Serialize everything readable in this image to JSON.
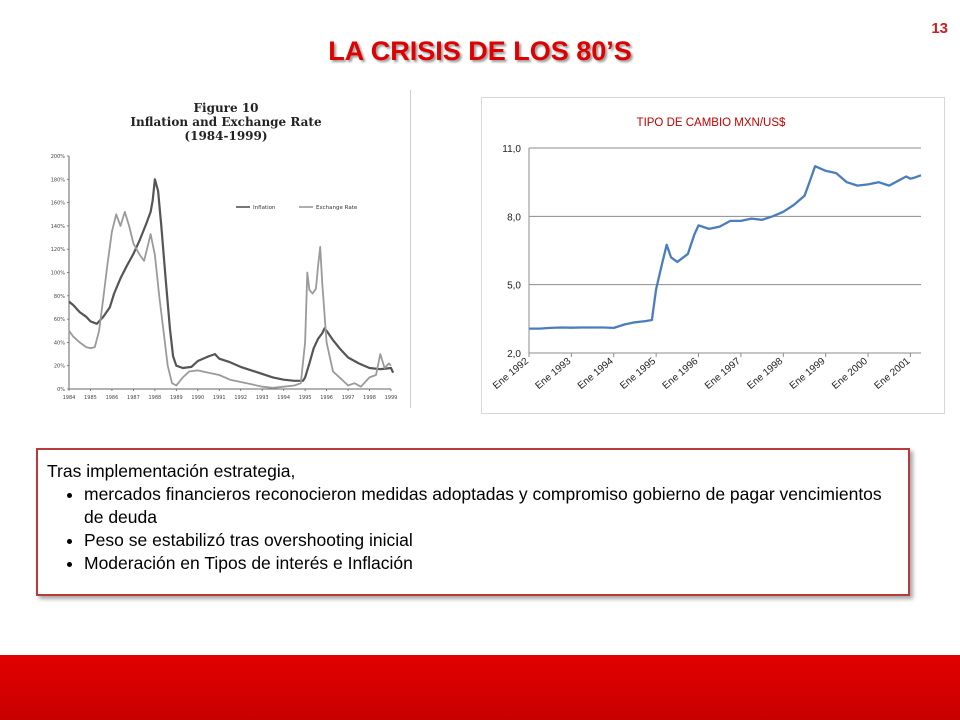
{
  "page_number": "13",
  "slide_title": "LA CRISIS DE LOS 80’S",
  "chart_data": [
    {
      "type": "line",
      "title": "Figure 10",
      "subtitle": "Inflation and Exchange Rate",
      "period": "(1984-1999)",
      "x": [
        "1984",
        "1985",
        "1986",
        "1987",
        "1988",
        "1989",
        "1990",
        "1991",
        "1992",
        "1993",
        "1994",
        "1995",
        "1996",
        "1997",
        "1998",
        "1999"
      ],
      "ylim": [
        0,
        200
      ],
      "y_ticks": [
        "200%",
        "180%",
        "160%",
        "140%",
        "120%",
        "100%",
        "80%",
        "60%",
        "40%",
        "20%",
        "0%"
      ],
      "legend_position": "top-right",
      "series": [
        {
          "name": "Inflation",
          "color": "#555555",
          "points": [
            [
              1984.0,
              75
            ],
            [
              1984.2,
              72
            ],
            [
              1984.5,
              66
            ],
            [
              1984.8,
              62
            ],
            [
              1985.0,
              58
            ],
            [
              1985.3,
              56
            ],
            [
              1985.6,
              62
            ],
            [
              1985.9,
              70
            ],
            [
              1986.1,
              82
            ],
            [
              1986.4,
              95
            ],
            [
              1986.7,
              106
            ],
            [
              1987.0,
              116
            ],
            [
              1987.3,
              128
            ],
            [
              1987.6,
              142
            ],
            [
              1987.8,
              152
            ],
            [
              1987.9,
              162
            ],
            [
              1988.0,
              180
            ],
            [
              1988.15,
              170
            ],
            [
              1988.3,
              140
            ],
            [
              1988.5,
              95
            ],
            [
              1988.7,
              52
            ],
            [
              1988.85,
              28
            ],
            [
              1989.0,
              20
            ],
            [
              1989.3,
              18
            ],
            [
              1989.7,
              19
            ],
            [
              1990.0,
              24
            ],
            [
              1990.5,
              28
            ],
            [
              1990.8,
              30
            ],
            [
              1991.0,
              26
            ],
            [
              1991.5,
              23
            ],
            [
              1992.0,
              19
            ],
            [
              1992.5,
              16
            ],
            [
              1993.0,
              13
            ],
            [
              1993.5,
              10
            ],
            [
              1994.0,
              8
            ],
            [
              1994.5,
              7
            ],
            [
              1994.9,
              7
            ],
            [
              1995.0,
              10
            ],
            [
              1995.2,
              22
            ],
            [
              1995.4,
              35
            ],
            [
              1995.6,
              43
            ],
            [
              1995.8,
              48
            ],
            [
              1995.9,
              52
            ],
            [
              1996.0,
              50
            ],
            [
              1996.3,
              42
            ],
            [
              1996.6,
              35
            ],
            [
              1997.0,
              27
            ],
            [
              1997.5,
              22
            ],
            [
              1998.0,
              18
            ],
            [
              1998.5,
              17
            ],
            [
              1999.0,
              18
            ],
            [
              1999.1,
              14
            ]
          ]
        },
        {
          "name": "Exchange Rate",
          "color": "#9a9a9a",
          "points": [
            [
              1984.0,
              50
            ],
            [
              1984.2,
              45
            ],
            [
              1984.5,
              40
            ],
            [
              1984.8,
              36
            ],
            [
              1985.0,
              35
            ],
            [
              1985.2,
              36
            ],
            [
              1985.4,
              50
            ],
            [
              1985.6,
              78
            ],
            [
              1985.8,
              108
            ],
            [
              1986.0,
              135
            ],
            [
              1986.2,
              150
            ],
            [
              1986.4,
              140
            ],
            [
              1986.6,
              152
            ],
            [
              1986.8,
              140
            ],
            [
              1987.0,
              125
            ],
            [
              1987.3,
              115
            ],
            [
              1987.5,
              110
            ],
            [
              1987.7,
              125
            ],
            [
              1987.8,
              133
            ],
            [
              1988.0,
              115
            ],
            [
              1988.2,
              80
            ],
            [
              1988.4,
              50
            ],
            [
              1988.6,
              20
            ],
            [
              1988.8,
              5
            ],
            [
              1989.0,
              3
            ],
            [
              1989.3,
              10
            ],
            [
              1989.6,
              15
            ],
            [
              1990.0,
              16
            ],
            [
              1990.5,
              14
            ],
            [
              1991.0,
              12
            ],
            [
              1991.5,
              8
            ],
            [
              1992.0,
              6
            ],
            [
              1992.5,
              4
            ],
            [
              1993.0,
              2
            ],
            [
              1993.5,
              1
            ],
            [
              1994.0,
              2
            ],
            [
              1994.5,
              3
            ],
            [
              1994.8,
              5
            ],
            [
              1995.0,
              40
            ],
            [
              1995.1,
              100
            ],
            [
              1995.2,
              85
            ],
            [
              1995.35,
              82
            ],
            [
              1995.5,
              86
            ],
            [
              1995.6,
              105
            ],
            [
              1995.7,
              122
            ],
            [
              1995.8,
              90
            ],
            [
              1996.0,
              40
            ],
            [
              1996.3,
              15
            ],
            [
              1996.6,
              10
            ],
            [
              1997.0,
              3
            ],
            [
              1997.3,
              5
            ],
            [
              1997.6,
              2
            ],
            [
              1998.0,
              10
            ],
            [
              1998.3,
              12
            ],
            [
              1998.5,
              30
            ],
            [
              1998.7,
              18
            ],
            [
              1998.9,
              22
            ],
            [
              1999.0,
              20
            ]
          ]
        }
      ]
    },
    {
      "type": "line",
      "title": "TIPO DE CAMBIO MXN/US$",
      "ylim": [
        2.0,
        11.0
      ],
      "y_ticks": [
        "11,0",
        "8,0",
        "5,0",
        "2,0"
      ],
      "x_labels": [
        "Ene 1992",
        "Ene 1993",
        "Ene 1994",
        "Ene 1995",
        "Ene 1996",
        "Ene 1997",
        "Ene 1998",
        "Ene 1999",
        "Ene 2000",
        "Ene 2001"
      ],
      "grid": true,
      "series": [
        {
          "color": "#4a7ebb",
          "points": [
            [
              1992.0,
              3.07
            ],
            [
              1992.25,
              3.07
            ],
            [
              1992.5,
              3.1
            ],
            [
              1992.75,
              3.12
            ],
            [
              1993.0,
              3.11
            ],
            [
              1993.25,
              3.12
            ],
            [
              1993.5,
              3.12
            ],
            [
              1993.75,
              3.12
            ],
            [
              1994.0,
              3.1
            ],
            [
              1994.25,
              3.25
            ],
            [
              1994.5,
              3.35
            ],
            [
              1994.75,
              3.4
            ],
            [
              1994.9,
              3.45
            ],
            [
              1995.0,
              4.8
            ],
            [
              1995.15,
              6.0
            ],
            [
              1995.25,
              6.75
            ],
            [
              1995.35,
              6.2
            ],
            [
              1995.5,
              6.0
            ],
            [
              1995.75,
              6.35
            ],
            [
              1995.9,
              7.2
            ],
            [
              1996.0,
              7.6
            ],
            [
              1996.25,
              7.45
            ],
            [
              1996.5,
              7.55
            ],
            [
              1996.75,
              7.8
            ],
            [
              1997.0,
              7.8
            ],
            [
              1997.25,
              7.9
            ],
            [
              1997.5,
              7.85
            ],
            [
              1997.75,
              8.0
            ],
            [
              1998.0,
              8.2
            ],
            [
              1998.25,
              8.5
            ],
            [
              1998.5,
              8.9
            ],
            [
              1998.6,
              9.4
            ],
            [
              1998.75,
              10.2
            ],
            [
              1999.0,
              10.0
            ],
            [
              1999.25,
              9.9
            ],
            [
              1999.5,
              9.5
            ],
            [
              1999.75,
              9.35
            ],
            [
              2000.0,
              9.4
            ],
            [
              2000.25,
              9.5
            ],
            [
              2000.5,
              9.35
            ],
            [
              2000.75,
              9.6
            ],
            [
              2000.9,
              9.75
            ],
            [
              2001.0,
              9.65
            ],
            [
              2001.1,
              9.7
            ],
            [
              2001.25,
              9.8
            ]
          ]
        }
      ]
    }
  ],
  "text_box": {
    "intro": "Tras implementación estrategia,",
    "bullets": [
      "mercados financieros reconocieron medidas adoptadas y compromiso gobierno de pagar vencimientos de deuda",
      "Peso se estabilizó  tras overshooting inicial",
      "Moderación en Tipos de interés e Inflación"
    ]
  },
  "colors": {
    "title_red": "#e00000",
    "footer_red": "#d40000",
    "box_border": "#b83a3a",
    "line_blue": "#4a7ebb"
  }
}
